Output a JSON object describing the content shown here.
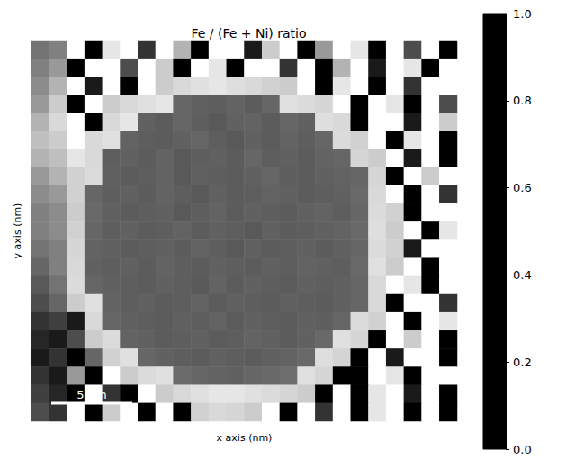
{
  "chart_data": {
    "type": "heatmap",
    "title": "Fe / (Fe + Ni) ratio",
    "x_label": "x axis (nm)",
    "y_label": "y axis (nm)",
    "xlim": [
      0,
      26.3
    ],
    "ylim": [
      0,
      23.5
    ],
    "tick_labels": false,
    "color": "gray",
    "scale_bar": {
      "label": "5 nm",
      "length": 5
    },
    "colorbar": {
      "range": [
        0,
        1
      ],
      "ticks": [
        {
          "value": 0,
          "label": "0.0"
        },
        {
          "value": 0.2,
          "label": "0.2"
        },
        {
          "value": 0.4,
          "label": "0.4"
        },
        {
          "value": 0.6,
          "label": "0.6"
        },
        {
          "value": 0.8,
          "label": "0.8"
        },
        {
          "value": 1,
          "label": "1.0"
        }
      ]
    },
    "cells": [
      [
        0.45,
        0.5,
        1,
        0,
        0.9,
        1,
        0.2,
        1,
        0.7,
        0,
        1,
        1,
        0.1,
        0.8,
        1,
        0,
        0.6,
        1,
        0.9,
        0,
        1,
        0.3,
        1,
        0
      ],
      [
        0.5,
        0.6,
        0,
        1,
        1,
        0.3,
        1,
        0.8,
        0,
        1,
        0.9,
        0,
        1,
        1,
        0.2,
        1,
        0,
        0.7,
        1,
        0.1,
        1,
        0.9,
        0,
        1
      ],
      [
        0.55,
        0.7,
        1,
        0.1,
        1,
        0,
        1,
        0.8,
        0.85,
        0.88,
        0.9,
        0.87,
        0.85,
        0.82,
        0.8,
        1,
        0,
        0.9,
        1,
        0,
        1,
        0.2,
        1,
        1
      ],
      [
        0.6,
        0.8,
        0,
        1,
        0.8,
        0.85,
        0.88,
        0.9,
        0.4,
        0.38,
        0.37,
        0.39,
        0.36,
        0.4,
        0.88,
        0.86,
        0.84,
        1,
        0,
        1,
        0.9,
        0,
        1,
        0.3
      ],
      [
        0.7,
        0.85,
        1,
        0,
        0.85,
        0.9,
        0.38,
        0.36,
        0.4,
        0.37,
        0.35,
        0.38,
        0.39,
        0.36,
        0.4,
        0.38,
        0.87,
        0.85,
        0,
        1,
        1,
        0.1,
        1,
        0.8
      ],
      [
        0.75,
        0.8,
        1,
        0.85,
        0.88,
        0.39,
        0.37,
        0.36,
        0.38,
        0.4,
        0.37,
        0.35,
        0.38,
        0.36,
        0.39,
        0.37,
        0.4,
        0.86,
        0.82,
        1,
        0,
        0.9,
        1,
        0
      ],
      [
        0.7,
        0.75,
        0.9,
        0.85,
        0.37,
        0.38,
        0.36,
        0.39,
        0.35,
        0.37,
        0.38,
        0.36,
        0.4,
        0.37,
        0.38,
        0.36,
        0.39,
        0.4,
        0.84,
        0.8,
        1,
        0.1,
        1,
        0
      ],
      [
        0.6,
        0.7,
        0.82,
        0.86,
        0.38,
        0.36,
        0.37,
        0.39,
        0.35,
        0.38,
        0.37,
        0.36,
        0.38,
        0.4,
        0.37,
        0.36,
        0.38,
        0.39,
        0.4,
        0.84,
        0,
        1,
        0.8,
        1
      ],
      [
        0.55,
        0.6,
        0.82,
        0.4,
        0.37,
        0.38,
        0.36,
        0.39,
        0.37,
        0.35,
        0.38,
        0.36,
        0.37,
        0.39,
        0.38,
        0.36,
        0.37,
        0.38,
        0.41,
        0.85,
        1,
        0,
        1,
        0.2
      ],
      [
        0.5,
        0.55,
        0.8,
        0.41,
        0.38,
        0.36,
        0.37,
        0.38,
        0.35,
        0.37,
        0.39,
        0.36,
        0.38,
        0.37,
        0.36,
        0.38,
        0.39,
        0.37,
        0.4,
        0.86,
        0.82,
        0,
        1,
        1
      ],
      [
        0.5,
        0.55,
        0.82,
        0.4,
        0.37,
        0.38,
        0.36,
        0.37,
        0.39,
        0.36,
        0.38,
        0.37,
        0.35,
        0.38,
        0.36,
        0.37,
        0.38,
        0.39,
        0.41,
        0.87,
        0.8,
        1,
        0,
        0.9
      ],
      [
        0.45,
        0.5,
        0.84,
        0.39,
        0.38,
        0.36,
        0.37,
        0.38,
        0.36,
        0.39,
        0.37,
        0.35,
        0.38,
        0.36,
        0.37,
        0.38,
        0.36,
        0.38,
        0.4,
        0.86,
        0.82,
        0.1,
        1,
        1
      ],
      [
        0.4,
        0.5,
        0.85,
        0.38,
        0.37,
        0.38,
        0.36,
        0.39,
        0.37,
        0.36,
        0.38,
        0.37,
        0.36,
        0.38,
        0.37,
        0.39,
        0.38,
        0.37,
        0.41,
        0.88,
        0.8,
        1,
        0,
        1
      ],
      [
        0.35,
        0.45,
        0.86,
        0.4,
        0.38,
        0.37,
        0.36,
        0.38,
        0.37,
        0.35,
        0.39,
        0.36,
        0.38,
        0.37,
        0.36,
        0.38,
        0.37,
        0.38,
        0.4,
        0.85,
        1,
        0.9,
        0,
        1
      ],
      [
        0.3,
        0.4,
        0.8,
        0.88,
        0.39,
        0.37,
        0.38,
        0.36,
        0.37,
        0.39,
        0.36,
        0.38,
        0.37,
        0.36,
        0.38,
        0.37,
        0.36,
        0.38,
        0.4,
        0.85,
        0,
        1,
        1,
        0.2
      ],
      [
        0.2,
        0.25,
        0.1,
        0.85,
        0.4,
        0.38,
        0.37,
        0.36,
        0.38,
        0.37,
        0.39,
        0.36,
        0.38,
        0.37,
        0.36,
        0.38,
        0.37,
        0.4,
        0.86,
        0.82,
        1,
        0,
        1,
        0.9
      ],
      [
        0.15,
        0.1,
        0.3,
        0.8,
        0.86,
        0.39,
        0.38,
        0.36,
        0.37,
        0.38,
        0.36,
        0.37,
        0.39,
        0.38,
        0.36,
        0.38,
        0.41,
        0.88,
        0.84,
        0,
        1,
        0.8,
        1,
        0
      ],
      [
        0.1,
        0.2,
        0,
        0.4,
        0.82,
        0.88,
        0.4,
        0.38,
        0.37,
        0.36,
        0.38,
        0.37,
        0.36,
        0.38,
        0.39,
        0.41,
        0.87,
        0.83,
        0,
        1,
        0.1,
        1,
        1,
        0
      ],
      [
        0.2,
        0.1,
        0.6,
        0,
        1,
        0.8,
        0.86,
        0.88,
        0.42,
        0.4,
        0.39,
        0.38,
        0.4,
        0.41,
        0.43,
        0.88,
        0.84,
        0,
        0,
        1,
        0.9,
        0,
        1,
        1
      ],
      [
        0.25,
        0.15,
        0,
        1,
        0.2,
        0,
        1,
        0.8,
        0.85,
        0.88,
        0.9,
        0.9,
        0.88,
        0.86,
        0.84,
        0.8,
        0,
        1,
        0,
        0.9,
        1,
        0.1,
        1,
        0
      ],
      [
        0.3,
        0.2,
        1,
        0,
        0.8,
        1,
        0,
        1,
        0,
        0.82,
        0.85,
        0.84,
        0.8,
        1,
        0,
        1,
        0.2,
        1,
        0,
        0.9,
        1,
        0,
        1,
        0
      ]
    ]
  }
}
